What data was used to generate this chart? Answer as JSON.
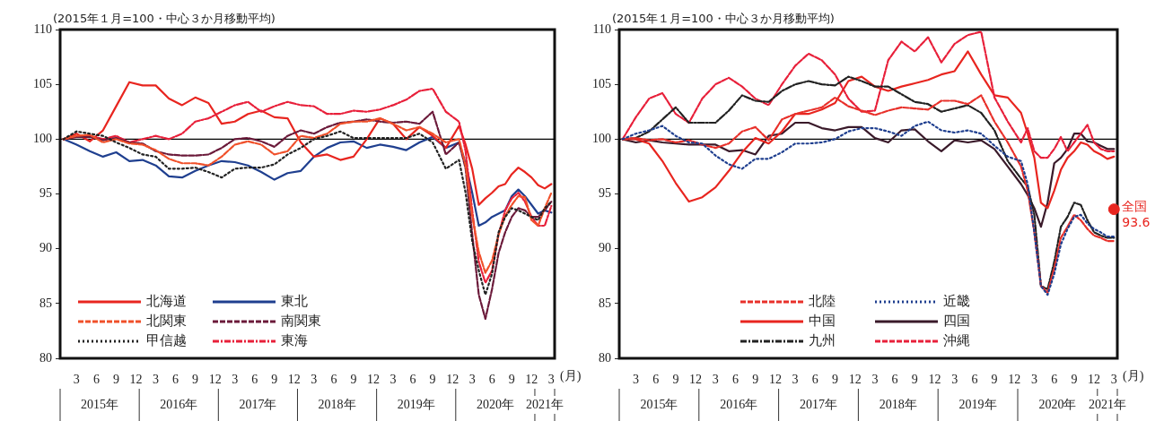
{
  "chart_data": [
    {
      "type": "line",
      "subtitle": "(2015年１月=100・中心３か月移動平均)",
      "x": [
        "2015-01",
        "2015-03",
        "2015-05",
        "2015-07",
        "2015-09",
        "2015-11",
        "2016-01",
        "2016-03",
        "2016-05",
        "2016-07",
        "2016-09",
        "2016-11",
        "2017-01",
        "2017-03",
        "2017-05",
        "2017-07",
        "2017-09",
        "2017-11",
        "2018-01",
        "2018-03",
        "2018-05",
        "2018-07",
        "2018-09",
        "2018-11",
        "2019-01",
        "2019-03",
        "2019-05",
        "2019-07",
        "2019-09",
        "2019-11",
        "2020-01",
        "2020-02",
        "2020-03",
        "2020-04",
        "2020-05",
        "2020-06",
        "2020-07",
        "2020-08",
        "2020-09",
        "2020-10",
        "2020-11",
        "2020-12",
        "2021-01",
        "2021-02",
        "2021-03"
      ],
      "xlim": [
        "2014-12-16",
        "2021-03-16"
      ],
      "xticks": [
        {
          "value": "2015-03",
          "label": "3"
        },
        {
          "value": "2015-06",
          "label": "6"
        },
        {
          "value": "2015-09",
          "label": "9"
        },
        {
          "value": "2015-12",
          "label": "12"
        },
        {
          "value": "2016-03",
          "label": "3"
        },
        {
          "value": "2016-06",
          "label": "6"
        },
        {
          "value": "2016-09",
          "label": "9"
        },
        {
          "value": "2016-12",
          "label": "12"
        },
        {
          "value": "2017-03",
          "label": "3"
        },
        {
          "value": "2017-06",
          "label": "6"
        },
        {
          "value": "2017-09",
          "label": "9"
        },
        {
          "value": "2017-12",
          "label": "12"
        },
        {
          "value": "2018-03",
          "label": "3"
        },
        {
          "value": "2018-06",
          "label": "6"
        },
        {
          "value": "2018-09",
          "label": "9"
        },
        {
          "value": "2018-12",
          "label": "12"
        },
        {
          "value": "2019-03",
          "label": "3"
        },
        {
          "value": "2019-06",
          "label": "6"
        },
        {
          "value": "2019-09",
          "label": "9"
        },
        {
          "value": "2019-12",
          "label": "12"
        },
        {
          "value": "2020-03",
          "label": "3"
        },
        {
          "value": "2020-06",
          "label": "6"
        },
        {
          "value": "2020-09",
          "label": "9"
        },
        {
          "value": "2020-12",
          "label": "12"
        },
        {
          "value": "2021-03",
          "label": "3"
        }
      ],
      "ylim": [
        80,
        110
      ],
      "yticks": [
        80,
        85,
        90,
        95,
        100,
        105,
        110
      ],
      "grid": false,
      "legend": "bottom left",
      "marker": "none",
      "ref_lines": [
        {
          "axis": "y",
          "value": 100,
          "color": "#000000"
        }
      ],
      "annotations": [
        "2015年",
        "2016年",
        "2017年",
        "2018年",
        "2019年",
        "2020年",
        "2021年",
        "(月)"
      ],
      "series": [
        {
          "name": "北海道",
          "color": "#e8251f",
          "line_style": "solid",
          "values": [
            100,
            100.5,
            99.8,
            100.8,
            103,
            105.2,
            104.9,
            104.9,
            103.7,
            103.1,
            103.8,
            103.3,
            101.4,
            101.6,
            102.3,
            102.6,
            102,
            101.9,
            99.7,
            98.4,
            98.6,
            98.1,
            98.4,
            100,
            101.9,
            101.4,
            100,
            101.1,
            100.3,
            99.2,
            101.2,
            99.5,
            97.3,
            94,
            94.6,
            95.1,
            95.7,
            95.9,
            96.8,
            97.4,
            97,
            96.5,
            95.8,
            95.5,
            95.9
          ]
        },
        {
          "name": "東北",
          "color": "#1f3f8f",
          "line_style": "solid",
          "values": [
            100,
            99.5,
            98.9,
            98.4,
            98.8,
            98,
            98.1,
            97.6,
            96.6,
            96.5,
            97.1,
            97.6,
            98,
            97.9,
            97.6,
            97,
            96.3,
            96.9,
            97.1,
            98.4,
            99.2,
            99.7,
            99.8,
            99.2,
            99.5,
            99.3,
            99,
            99.7,
            100.2,
            99.2,
            99.7,
            97.8,
            95.1,
            92.1,
            92.4,
            92.9,
            93.2,
            93.5,
            94.8,
            95.4,
            94.8,
            94,
            93.2,
            93.5,
            93.3
          ]
        },
        {
          "name": "北関東",
          "color": "#f0502a",
          "line_style": "dashed",
          "values": [
            100,
            100.3,
            100.4,
            99.7,
            100,
            99.6,
            99.5,
            99,
            98.2,
            97.8,
            97.8,
            97.6,
            98.4,
            99.5,
            99.8,
            99.5,
            98.6,
            98.9,
            100.3,
            100.1,
            100.5,
            101.4,
            101.6,
            101.6,
            101.9,
            101.4,
            100.8,
            101.1,
            100.5,
            99.7,
            100,
            97.6,
            93,
            89.7,
            87.8,
            88.9,
            91.3,
            93,
            94,
            94.8,
            94.7,
            92.6,
            92.1,
            93.7,
            95.1
          ]
        },
        {
          "name": "南関東",
          "color": "#6b1a3a",
          "line_style": "dashed",
          "values": [
            100,
            100.2,
            100.2,
            99.9,
            100.1,
            99.7,
            99.6,
            98.9,
            98.6,
            98.5,
            98.5,
            98.6,
            99.2,
            100,
            100.1,
            99.8,
            99.3,
            100.3,
            100.8,
            100.5,
            101.1,
            101.5,
            101.6,
            101.8,
            101.6,
            101.5,
            101.6,
            101.4,
            102.5,
            98.6,
            99.7,
            97.3,
            91.3,
            85.8,
            83.6,
            86.3,
            89.6,
            91.5,
            92.9,
            93.7,
            93.5,
            92.9,
            92.9,
            93.5,
            94.3
          ]
        },
        {
          "name": "甲信越",
          "color": "#222222",
          "line_style": "dotted",
          "values": [
            100,
            100.7,
            100.5,
            100.3,
            99.7,
            99.2,
            98.6,
            98.4,
            97.3,
            97.3,
            97.4,
            97,
            96.5,
            97.3,
            97.4,
            97.4,
            97.7,
            98.6,
            99.2,
            100,
            100.3,
            100.7,
            100.1,
            100.1,
            100.1,
            100.1,
            100.1,
            100.5,
            99.7,
            97.3,
            98.1,
            95.1,
            90.7,
            88,
            85.8,
            87.7,
            91.5,
            92.9,
            93.7,
            93.5,
            93.2,
            92.9,
            92.6,
            93.7,
            94.3
          ]
        },
        {
          "name": "東海",
          "color": "#e8203a",
          "line_style": "dashdot",
          "values": [
            100,
            100.2,
            100.3,
            100,
            100.3,
            99.7,
            100,
            100.3,
            100,
            100.5,
            101.6,
            101.9,
            102.5,
            103.1,
            103.4,
            102.5,
            103,
            103.4,
            103.1,
            103,
            102.3,
            102.3,
            102.6,
            102.5,
            102.7,
            103.1,
            103.6,
            104.4,
            104.6,
            102.5,
            101.6,
            98.9,
            93.5,
            88.8,
            86.9,
            88,
            91.3,
            93.5,
            94.6,
            95.1,
            94.3,
            92.9,
            92.1,
            92.1,
            93.9
          ]
        }
      ]
    },
    {
      "type": "line",
      "subtitle": "(2015年１月=100・中心３か月移動平均)",
      "x": [
        "2015-01",
        "2015-03",
        "2015-05",
        "2015-07",
        "2015-09",
        "2015-11",
        "2016-01",
        "2016-03",
        "2016-05",
        "2016-07",
        "2016-09",
        "2016-11",
        "2017-01",
        "2017-03",
        "2017-05",
        "2017-07",
        "2017-09",
        "2017-11",
        "2018-01",
        "2018-03",
        "2018-05",
        "2018-07",
        "2018-09",
        "2018-11",
        "2019-01",
        "2019-03",
        "2019-05",
        "2019-07",
        "2019-09",
        "2019-11",
        "2020-01",
        "2020-02",
        "2020-03",
        "2020-04",
        "2020-05",
        "2020-06",
        "2020-07",
        "2020-08",
        "2020-09",
        "2020-10",
        "2020-11",
        "2020-12",
        "2021-01",
        "2021-02",
        "2021-03"
      ],
      "xlim": [
        "2014-12-16",
        "2021-03-16"
      ],
      "xticks": [
        {
          "value": "2015-03",
          "label": "3"
        },
        {
          "value": "2015-06",
          "label": "6"
        },
        {
          "value": "2015-09",
          "label": "9"
        },
        {
          "value": "2015-12",
          "label": "12"
        },
        {
          "value": "2016-03",
          "label": "3"
        },
        {
          "value": "2016-06",
          "label": "6"
        },
        {
          "value": "2016-09",
          "label": "9"
        },
        {
          "value": "2016-12",
          "label": "12"
        },
        {
          "value": "2017-03",
          "label": "3"
        },
        {
          "value": "2017-06",
          "label": "6"
        },
        {
          "value": "2017-09",
          "label": "9"
        },
        {
          "value": "2017-12",
          "label": "12"
        },
        {
          "value": "2018-03",
          "label": "3"
        },
        {
          "value": "2018-06",
          "label": "6"
        },
        {
          "value": "2018-09",
          "label": "9"
        },
        {
          "value": "2018-12",
          "label": "12"
        },
        {
          "value": "2019-03",
          "label": "3"
        },
        {
          "value": "2019-06",
          "label": "6"
        },
        {
          "value": "2019-09",
          "label": "9"
        },
        {
          "value": "2019-12",
          "label": "12"
        },
        {
          "value": "2020-03",
          "label": "3"
        },
        {
          "value": "2020-06",
          "label": "6"
        },
        {
          "value": "2020-09",
          "label": "9"
        },
        {
          "value": "2020-12",
          "label": "12"
        },
        {
          "value": "2021-03",
          "label": "3"
        }
      ],
      "ylim": [
        80,
        110
      ],
      "yticks": [
        80,
        85,
        90,
        95,
        100,
        105,
        110
      ],
      "grid": false,
      "legend": "bottom right",
      "marker": "none",
      "ref_lines": [
        {
          "axis": "y",
          "value": 100,
          "color": "#000000"
        }
      ],
      "annotations": [
        "2015年",
        "2016年",
        "2017年",
        "2018年",
        "2019年",
        "2020年",
        "2021年",
        "(月)"
      ],
      "series": [
        {
          "name": "北陸",
          "color": "#e8302a",
          "line_style": "dashed",
          "values": [
            100,
            100.1,
            99.9,
            100,
            99.7,
            99.9,
            99.5,
            99.2,
            99.6,
            100.7,
            101.1,
            99.9,
            101.8,
            102.3,
            102.6,
            102.9,
            103.8,
            103,
            102.6,
            102.2,
            102.6,
            102.9,
            102.8,
            102.7,
            103.5,
            103.5,
            103.2,
            104,
            101.6,
            99.7,
            97.5,
            95.3,
            91.5,
            86.6,
            86,
            88.2,
            91,
            92,
            93.1,
            92.6,
            91.8,
            91.2,
            91,
            90.7,
            90.7
          ]
        },
        {
          "name": "近畿",
          "color": "#1f3f8f",
          "line_style": "dotted",
          "values": [
            100,
            100.5,
            100.8,
            101.2,
            100.3,
            99.7,
            99.6,
            98.5,
            97.7,
            97.3,
            98.2,
            98.2,
            98.8,
            99.6,
            99.6,
            99.7,
            100,
            100.7,
            101,
            101,
            100.7,
            100.3,
            101.2,
            101.6,
            100.8,
            100.6,
            100.8,
            100.5,
            99.4,
            98.4,
            98,
            95.9,
            91.5,
            86.6,
            85.8,
            87.7,
            90.4,
            91.8,
            92.9,
            93.1,
            92.3,
            91.8,
            91.5,
            91.1,
            91.1
          ]
        },
        {
          "name": "中国",
          "color": "#e8251f",
          "line_style": "solid",
          "values": [
            100,
            100,
            99.6,
            98,
            96,
            94.3,
            94.7,
            95.6,
            97.1,
            98.8,
            100.1,
            99.6,
            100.7,
            102.3,
            102.3,
            102.7,
            103.3,
            105.3,
            105.7,
            104.8,
            104.4,
            104.8,
            105.1,
            105.4,
            105.9,
            106.2,
            108,
            105.9,
            104,
            103.8,
            102.4,
            100.5,
            98.3,
            94.2,
            93.7,
            95.3,
            97.2,
            98.3,
            98.9,
            99.7,
            99.5,
            98.9,
            98.6,
            98.2,
            98.4
          ]
        },
        {
          "name": "四国",
          "color": "#3a1a2a",
          "line_style": "solid",
          "values": [
            100,
            99.7,
            99.9,
            99.7,
            99.6,
            99.5,
            99.5,
            99.5,
            98.9,
            99,
            98.6,
            100.3,
            100.5,
            101.5,
            101.5,
            101,
            100.8,
            101.1,
            101.1,
            100.1,
            99.7,
            100.8,
            100.9,
            99.8,
            98.9,
            99.9,
            99.7,
            99.9,
            99.1,
            97.5,
            95.9,
            94.9,
            93.7,
            92,
            94.2,
            97.8,
            98.3,
            99.1,
            100.5,
            100.5,
            99.8,
            99.7,
            99.4,
            99.1,
            99.1
          ]
        },
        {
          "name": "九州",
          "color": "#222222",
          "line_style": "dashdot",
          "values": [
            100,
            100.1,
            100.7,
            101.8,
            102.9,
            101.5,
            101.5,
            101.5,
            102.6,
            104,
            103.5,
            103.4,
            104.4,
            105,
            105.3,
            105,
            104.9,
            105.7,
            105.3,
            104.8,
            104.8,
            104.1,
            103.4,
            103.2,
            102.5,
            102.8,
            103.1,
            102.4,
            100.8,
            98,
            96.4,
            95.7,
            93.1,
            86.6,
            86.3,
            88.8,
            92,
            92.9,
            94.2,
            94,
            92.6,
            91.5,
            91.2,
            91,
            91
          ]
        },
        {
          "name": "沖縄",
          "color": "#e8203a",
          "line_style": "dashed",
          "values": [
            100,
            102,
            103.7,
            104.2,
            102.3,
            101.5,
            103.7,
            105,
            105.6,
            104.8,
            103.7,
            103.1,
            105,
            106.7,
            107.8,
            107.2,
            105.9,
            103.7,
            102.5,
            102.6,
            107.2,
            108.9,
            108,
            109.3,
            107,
            108.7,
            109.5,
            109.8,
            103.8,
            101.6,
            99.7,
            101,
            98.9,
            98.3,
            98.3,
            99.1,
            100.2,
            98.9,
            99.7,
            100.5,
            101.3,
            99.7,
            99.1,
            98.9,
            98.9
          ]
        },
        {
          "name": "全国",
          "type": "scatter",
          "color": "#e8251f",
          "marker": "circle",
          "x": [
            "2021-03"
          ],
          "values": [
            93.6
          ],
          "value_labels": [
            "93.6"
          ]
        }
      ]
    }
  ]
}
